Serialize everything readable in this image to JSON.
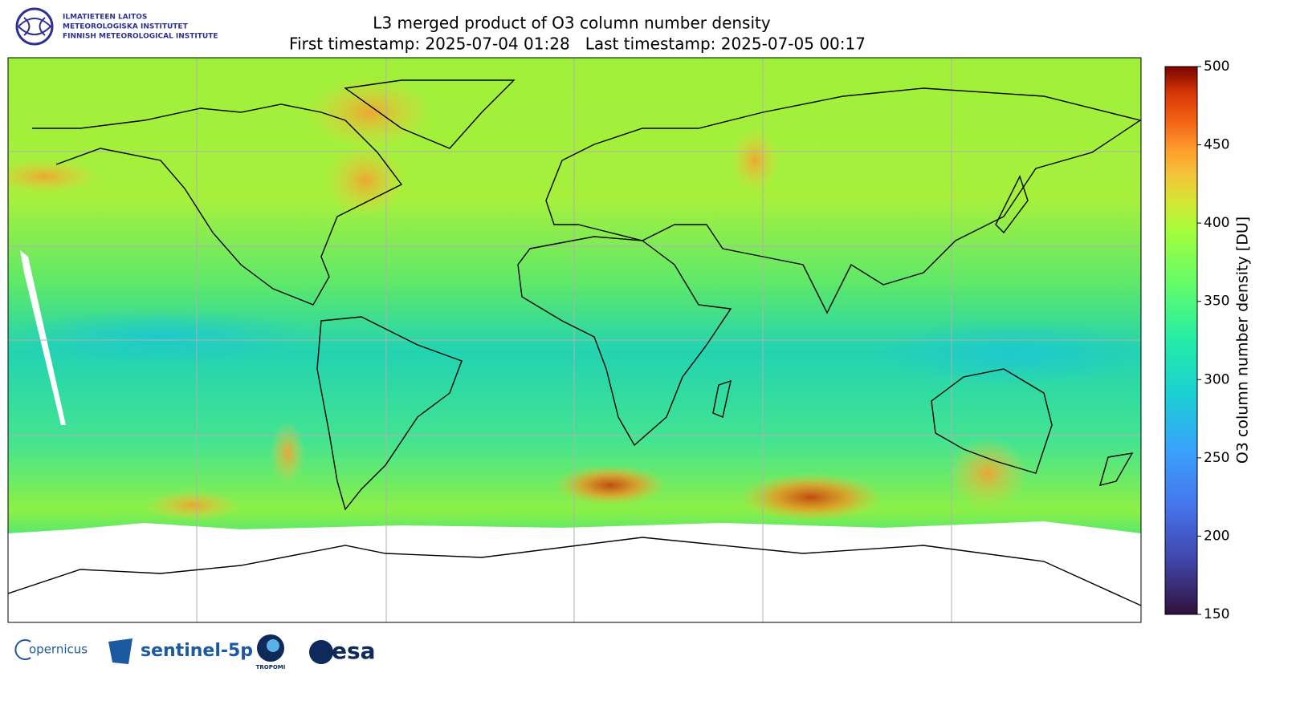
{
  "header": {
    "logo_lines": [
      "ILMATIETEEN LAITOS",
      "METEOROLOGISKA INSTITUTET",
      "FINNISH METEOROLOGICAL INSTITUTE"
    ],
    "title": "L3 merged product of O3 column number density",
    "subtitle": "First timestamp: 2025-07-04 01:28   Last timestamp: 2025-07-05 00:17"
  },
  "colorbar": {
    "label": "O3 column number density [DU]",
    "lim": [
      150,
      500
    ],
    "ticks": [
      150,
      200,
      250,
      300,
      350,
      400,
      450,
      500
    ]
  },
  "footer": {
    "logos": [
      "opernicus",
      "sentinel-5p",
      "TROPOMI",
      "esa"
    ]
  }
}
